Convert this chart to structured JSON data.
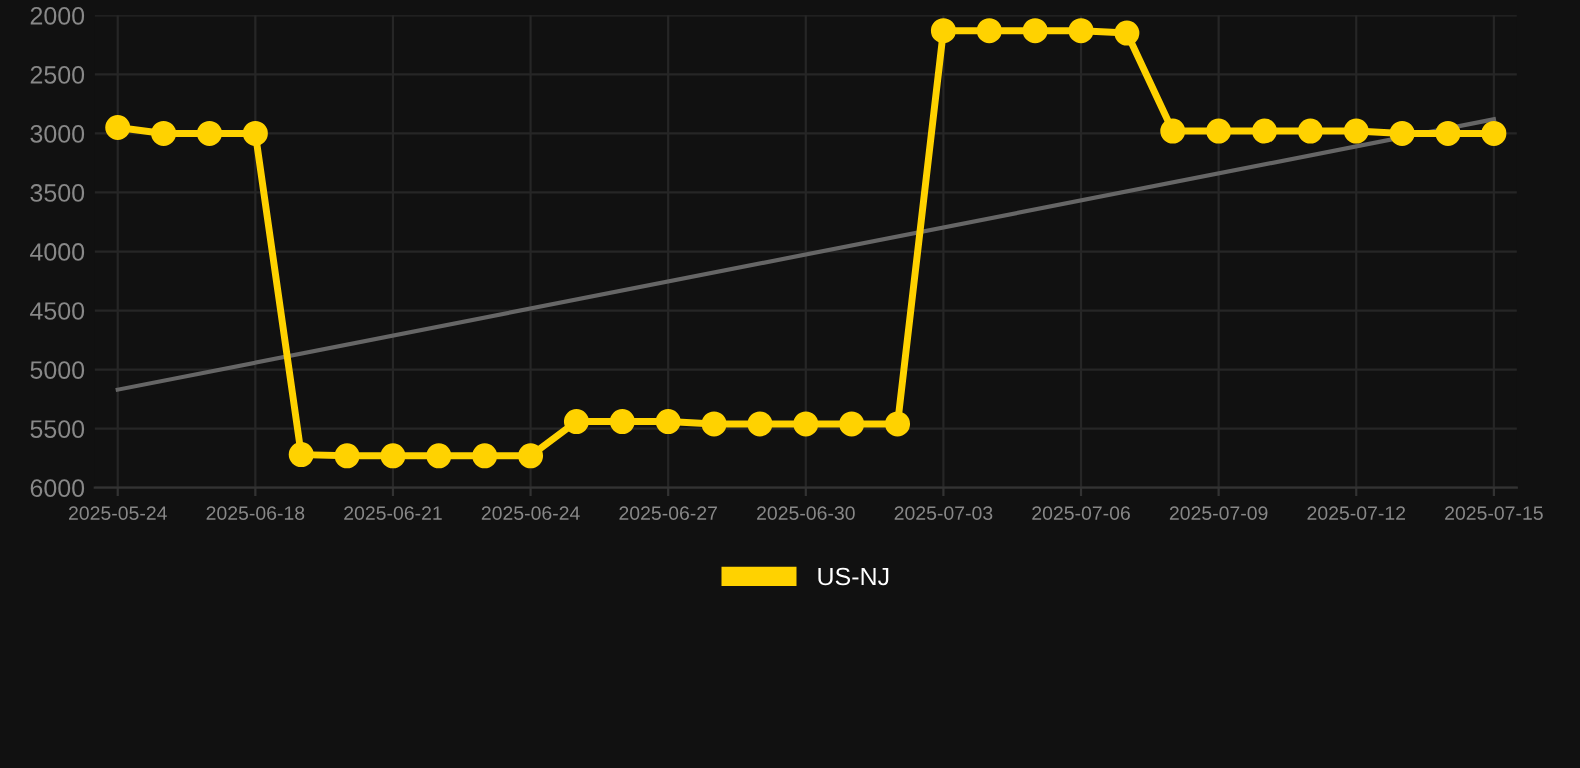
{
  "chart_data": {
    "type": "line",
    "categories": [
      "2025-05-24",
      null,
      null,
      "2025-06-18",
      null,
      null,
      "2025-06-21",
      null,
      null,
      "2025-06-24",
      null,
      null,
      "2025-06-27",
      null,
      null,
      "2025-06-30",
      null,
      null,
      "2025-07-03",
      null,
      null,
      "2025-07-06",
      null,
      null,
      "2025-07-09",
      null,
      null,
      "2025-07-12",
      null,
      null,
      "2025-07-15"
    ],
    "series": [
      {
        "name": "US-NJ",
        "color": "#ffd200",
        "marker": "circle",
        "values": [
          2950,
          3000,
          3000,
          3000,
          5720,
          5730,
          5730,
          5730,
          5730,
          5730,
          5440,
          5440,
          5440,
          5460,
          5460,
          5460,
          5460,
          5460,
          2130,
          2130,
          2130,
          2130,
          2150,
          2980,
          2980,
          2980,
          2980,
          2980,
          3000,
          3000,
          3000
        ]
      },
      {
        "type": "line",
        "color": "#666666",
        "marker": "none",
        "values": [
          5170,
          null,
          null,
          null,
          null,
          null,
          null,
          null,
          null,
          null,
          null,
          null,
          null,
          null,
          null,
          null,
          null,
          null,
          null,
          null,
          null,
          null,
          null,
          null,
          null,
          null,
          null,
          null,
          null,
          null,
          2880
        ]
      }
    ],
    "ylim": [
      6000,
      2000
    ],
    "yticks": [
      2000,
      2500,
      3000,
      3500,
      4000,
      4500,
      5000,
      5500,
      6000
    ],
    "grid": true,
    "legend": "bottom"
  }
}
